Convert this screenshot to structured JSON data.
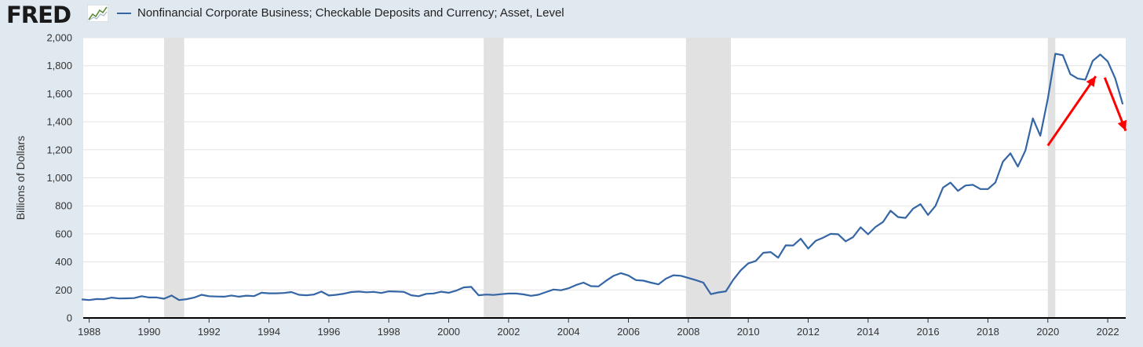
{
  "header": {
    "logo_text": "FRED",
    "logo_icon": "fred-graph-icon",
    "legend_label": "Nonfinancial Corporate Business; Checkable Deposits and Currency; Asset, Level",
    "legend_color": "#3465a4"
  },
  "chart_data": {
    "type": "line",
    "title": "",
    "xlabel": "",
    "ylabel": "Billions of Dollars",
    "xlim": [
      1987.8,
      2022.6
    ],
    "ylim": [
      0,
      2000
    ],
    "x_ticks": [
      "1988",
      "1990",
      "1992",
      "1994",
      "1996",
      "1998",
      "2000",
      "2002",
      "2004",
      "2006",
      "2008",
      "2010",
      "2012",
      "2014",
      "2016",
      "2018",
      "2020",
      "2022"
    ],
    "y_ticks": [
      "0",
      "200",
      "400",
      "600",
      "800",
      "1,000",
      "1,200",
      "1,400",
      "1,600",
      "1,800",
      "2,000"
    ],
    "grid": true,
    "recessions": [
      [
        1990.5,
        1991.17
      ],
      [
        2001.17,
        2001.83
      ],
      [
        2007.92,
        2009.42
      ],
      [
        2020.0,
        2020.25
      ]
    ],
    "recession_color": "#e1e1e1",
    "series": [
      {
        "name": "Nonfinancial Corporate Business; Checkable Deposits and Currency; Asset, Level",
        "color": "#3465a4",
        "x": [
          1987.75,
          1988.0,
          1988.25,
          1988.5,
          1988.75,
          1989.0,
          1989.25,
          1989.5,
          1989.75,
          1990.0,
          1990.25,
          1990.5,
          1990.75,
          1991.0,
          1991.25,
          1991.5,
          1991.75,
          1992.0,
          1992.25,
          1992.5,
          1992.75,
          1993.0,
          1993.25,
          1993.5,
          1993.75,
          1994.0,
          1994.25,
          1994.5,
          1994.75,
          1995.0,
          1995.25,
          1995.5,
          1995.75,
          1996.0,
          1996.25,
          1996.5,
          1996.75,
          1997.0,
          1997.25,
          1997.5,
          1997.75,
          1998.0,
          1998.25,
          1998.5,
          1998.75,
          1999.0,
          1999.25,
          1999.5,
          1999.75,
          2000.0,
          2000.25,
          2000.5,
          2000.75,
          2001.0,
          2001.25,
          2001.5,
          2001.75,
          2002.0,
          2002.25,
          2002.5,
          2002.75,
          2003.0,
          2003.25,
          2003.5,
          2003.75,
          2004.0,
          2004.25,
          2004.5,
          2004.75,
          2005.0,
          2005.25,
          2005.5,
          2005.75,
          2006.0,
          2006.25,
          2006.5,
          2006.75,
          2007.0,
          2007.25,
          2007.5,
          2007.75,
          2008.0,
          2008.25,
          2008.5,
          2008.75,
          2009.0,
          2009.25,
          2009.5,
          2009.75,
          2010.0,
          2010.25,
          2010.5,
          2010.75,
          2011.0,
          2011.25,
          2011.5,
          2011.75,
          2012.0,
          2012.25,
          2012.5,
          2012.75,
          2013.0,
          2013.25,
          2013.5,
          2013.75,
          2014.0,
          2014.25,
          2014.5,
          2014.75,
          2015.0,
          2015.25,
          2015.5,
          2015.75,
          2016.0,
          2016.25,
          2016.5,
          2016.75,
          2017.0,
          2017.25,
          2017.5,
          2017.75,
          2018.0,
          2018.25,
          2018.5,
          2018.75,
          2019.0,
          2019.25,
          2019.5,
          2019.75,
          2020.0,
          2020.25,
          2020.5,
          2020.75,
          2021.0,
          2021.25,
          2021.5,
          2021.75,
          2022.0,
          2022.25,
          2022.5
        ],
        "values": [
          132,
          128,
          135,
          134,
          145,
          139,
          140,
          142,
          155,
          146,
          146,
          137,
          160,
          128,
          134,
          145,
          165,
          155,
          153,
          152,
          160,
          152,
          159,
          156,
          180,
          176,
          176,
          178,
          185,
          165,
          162,
          167,
          188,
          160,
          165,
          173,
          185,
          188,
          183,
          186,
          178,
          190,
          188,
          186,
          162,
          155,
          172,
          175,
          187,
          180,
          195,
          218,
          222,
          162,
          167,
          164,
          170,
          174,
          174,
          168,
          158,
          166,
          185,
          203,
          198,
          212,
          235,
          252,
          227,
          225,
          265,
          300,
          320,
          303,
          270,
          266,
          252,
          240,
          280,
          305,
          301,
          285,
          270,
          252,
          170,
          182,
          190,
          273,
          340,
          390,
          407,
          465,
          470,
          430,
          518,
          517,
          565,
          495,
          550,
          573,
          600,
          597,
          547,
          577,
          647,
          597,
          650,
          685,
          765,
          720,
          714,
          780,
          812,
          735,
          800,
          930,
          966,
          907,
          945,
          950,
          920,
          920,
          967,
          1115,
          1175,
          1080,
          1195,
          1424,
          1300,
          1565,
          1885,
          1875,
          1740,
          1708,
          1700,
          1835,
          1880,
          1830,
          1710,
          1525
        ]
      }
    ],
    "annotations": [
      {
        "type": "arrow",
        "color": "#ff0000",
        "from": [
          2020.0,
          1230
        ],
        "to": [
          2021.6,
          1725
        ]
      },
      {
        "type": "arrow",
        "color": "#ff0000",
        "from": [
          2021.9,
          1715
        ],
        "to": [
          2022.6,
          1335
        ]
      }
    ]
  }
}
